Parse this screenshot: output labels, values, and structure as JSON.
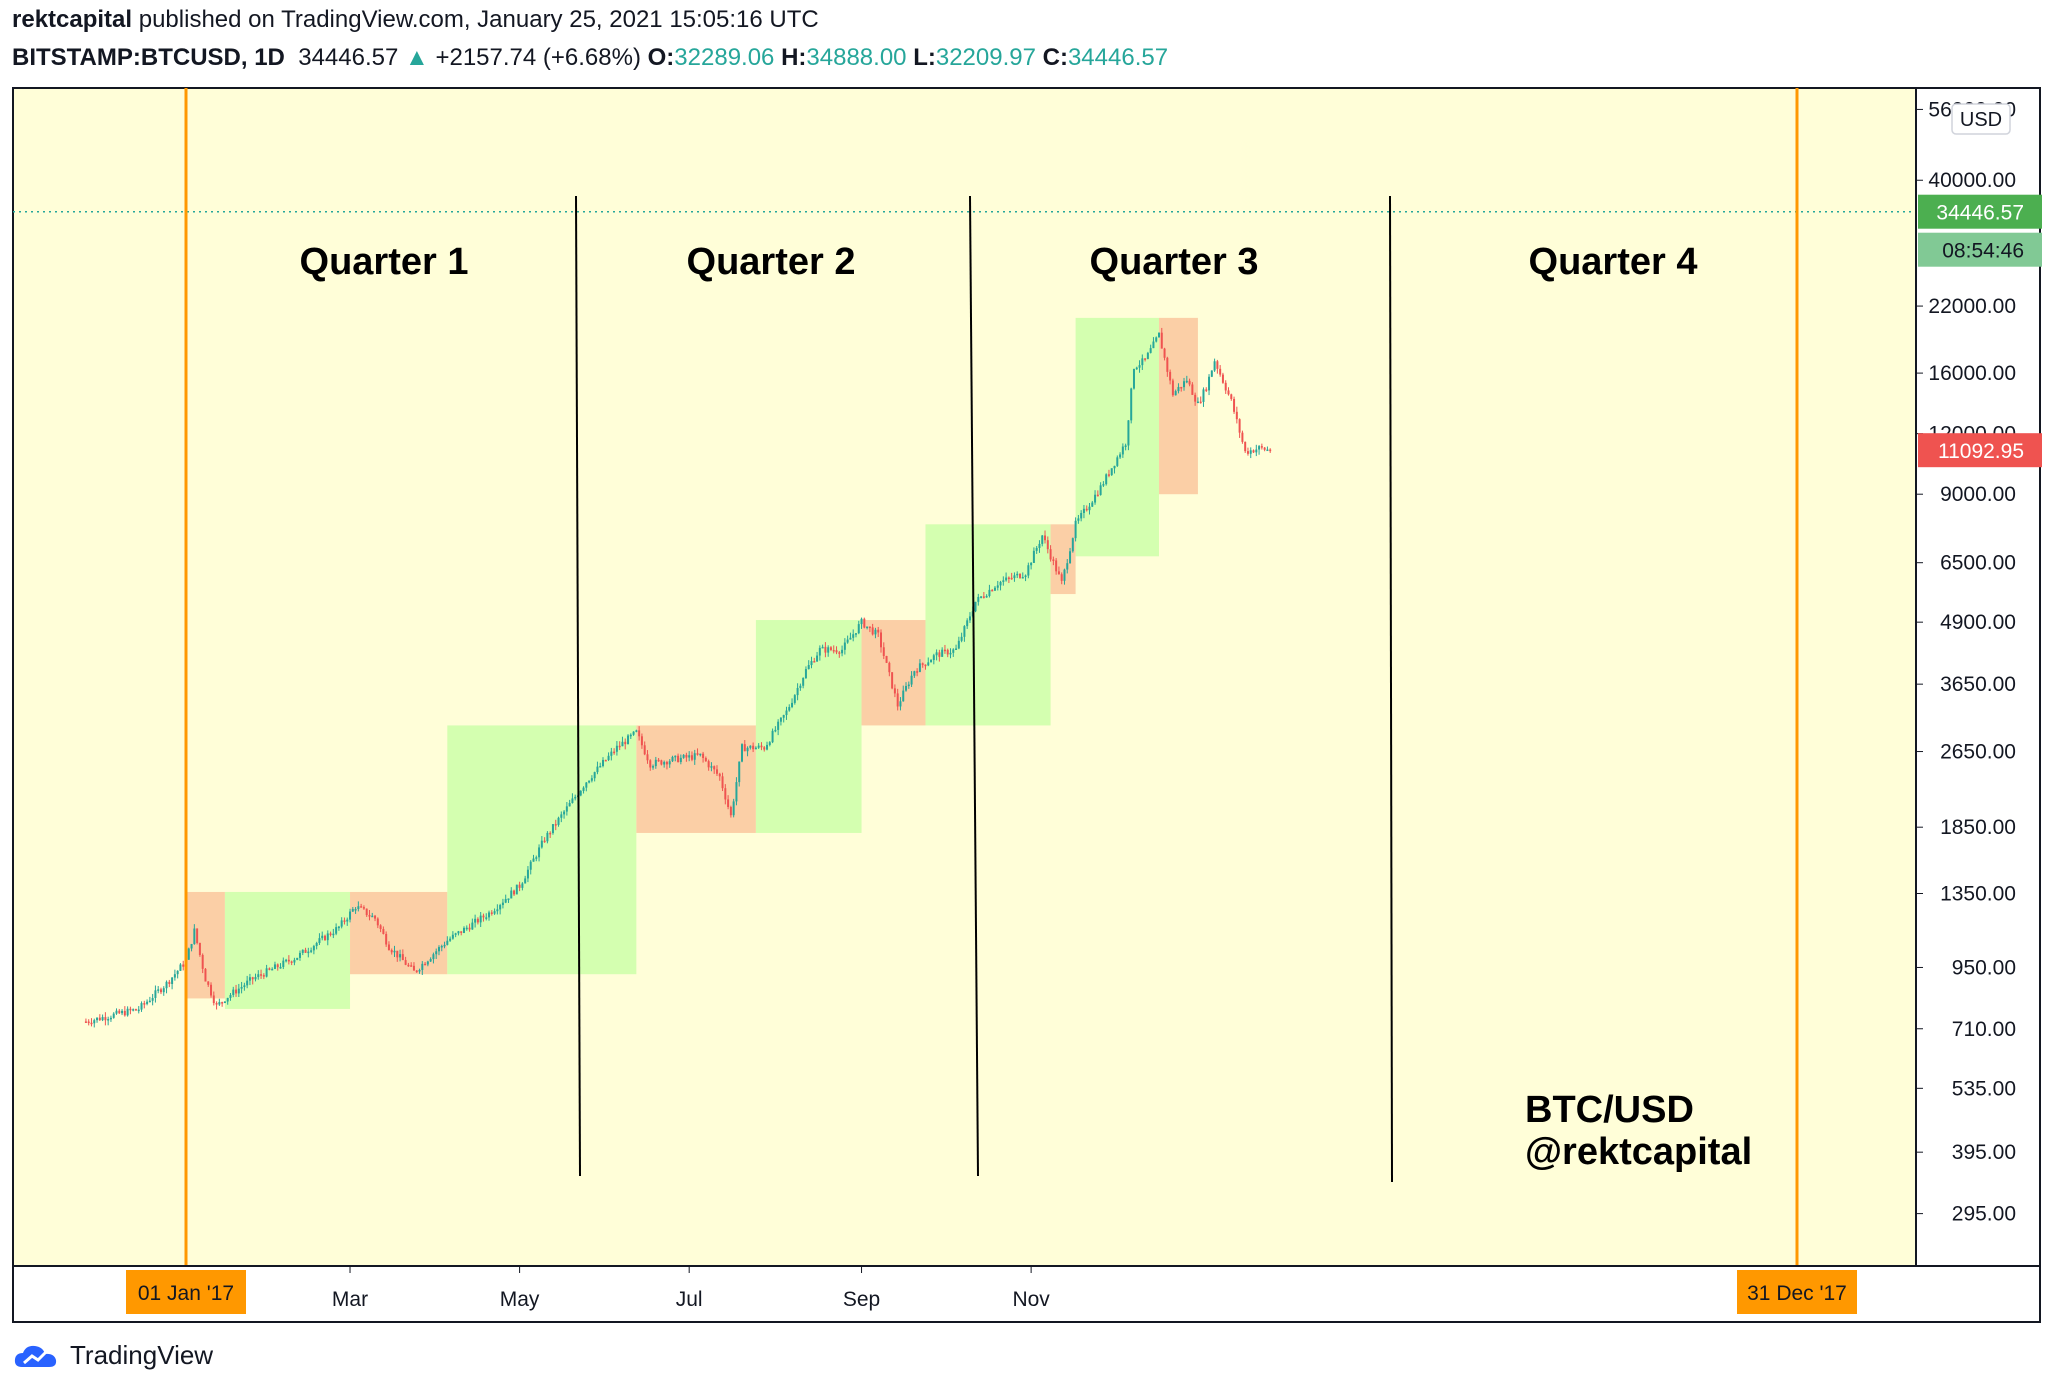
{
  "header": {
    "author": "rektcapital",
    "published_text": "published on TradingView.com, January 25, 2021 15:05:16 UTC",
    "symbol": "BITSTAMP:BTCUSD, 1D",
    "last": "34446.57",
    "change": "+2157.74 (+6.68%)",
    "open_label": "O:",
    "open": "32289.06",
    "high_label": "H:",
    "high": "34888.00",
    "low_label": "L:",
    "low": "32209.97",
    "close_label": "C:",
    "close": "34446.57"
  },
  "footer": {
    "brand": "TradingView"
  },
  "colors": {
    "background": "#fffed8",
    "green_zone": "#d4ffb0",
    "red_zone": "#fbcfa6",
    "up_candle": "#26a69a",
    "down_candle": "#ef5350",
    "orange_line": "#ff9800",
    "price_tag_green": "#4caf50",
    "price_tag_red": "#ef5350"
  },
  "chart_data": {
    "type": "candlestick",
    "scale": "log",
    "ylim": [
      230,
      62000
    ],
    "yticks": [
      "56000.00",
      "40000.00",
      "22000.00",
      "16000.00",
      "12000.00",
      "9000.00",
      "6500.00",
      "4900.00",
      "3650.00",
      "2650.00",
      "1850.00",
      "1350.00",
      "950.00",
      "710.00",
      "535.00",
      "395.00",
      "295.00"
    ],
    "currency_label": "USD",
    "xticks": [
      "Mar",
      "May",
      "Jul",
      "Sep",
      "Nov"
    ],
    "date_tags": [
      "01 Jan '17",
      "31 Dec '17"
    ],
    "price_tags": [
      {
        "text": "34446.57",
        "color": "green"
      },
      {
        "text": "08:54:46",
        "color": "green-light"
      },
      {
        "text": "11092.95",
        "color": "red"
      }
    ],
    "current_price_line": 34446.57,
    "quarters": [
      "Quarter 1",
      "Quarter 2",
      "Quarter 3",
      "Quarter 4"
    ],
    "annotations": [
      "BTC/USD",
      "@rektcapital"
    ],
    "zones": [
      {
        "color": "red",
        "from": "2017-01-01",
        "to": "2017-01-15",
        "low": 820,
        "high": 1360
      },
      {
        "color": "green",
        "from": "2017-01-15",
        "to": "2017-03-01",
        "low": 780,
        "high": 1360
      },
      {
        "color": "red",
        "from": "2017-03-01",
        "to": "2017-04-05",
        "low": 920,
        "high": 1360
      },
      {
        "color": "green",
        "from": "2017-04-05",
        "to": "2017-06-12",
        "low": 920,
        "high": 3000
      },
      {
        "color": "red",
        "from": "2017-06-12",
        "to": "2017-07-25",
        "low": 1800,
        "high": 3000
      },
      {
        "color": "green",
        "from": "2017-07-25",
        "to": "2017-09-01",
        "low": 1800,
        "high": 4950
      },
      {
        "color": "red",
        "from": "2017-09-01",
        "to": "2017-09-24",
        "low": 3000,
        "high": 4950
      },
      {
        "color": "green",
        "from": "2017-09-24",
        "to": "2017-11-08",
        "low": 3000,
        "high": 7800
      },
      {
        "color": "red",
        "from": "2017-11-08",
        "to": "2017-11-17",
        "low": 5600,
        "high": 7800
      },
      {
        "color": "green",
        "from": "2017-11-17",
        "to": "2017-12-17",
        "low": 6700,
        "high": 20800
      },
      {
        "color": "red",
        "from": "2017-12-17",
        "to": "2017-12-31",
        "low": 9000,
        "high": 20800
      }
    ],
    "price_path": [
      [
        "2016-11-26",
        735
      ],
      [
        "2016-12-15",
        780
      ],
      [
        "2016-12-25",
        880
      ],
      [
        "2017-01-01",
        980
      ],
      [
        "2017-01-04",
        1130
      ],
      [
        "2017-01-08",
        900
      ],
      [
        "2017-01-12",
        790
      ],
      [
        "2017-01-15",
        820
      ],
      [
        "2017-01-25",
        900
      ],
      [
        "2017-02-10",
        1000
      ],
      [
        "2017-02-25",
        1150
      ],
      [
        "2017-03-03",
        1270
      ],
      [
        "2017-03-10",
        1200
      ],
      [
        "2017-03-15",
        1050
      ],
      [
        "2017-03-24",
        930
      ],
      [
        "2017-04-05",
        1080
      ],
      [
        "2017-04-20",
        1230
      ],
      [
        "2017-05-01",
        1400
      ],
      [
        "2017-05-10",
        1750
      ],
      [
        "2017-05-25",
        2300
      ],
      [
        "2017-06-05",
        2700
      ],
      [
        "2017-06-12",
        2900
      ],
      [
        "2017-06-17",
        2500
      ],
      [
        "2017-06-25",
        2550
      ],
      [
        "2017-07-05",
        2600
      ],
      [
        "2017-07-12",
        2350
      ],
      [
        "2017-07-16",
        1950
      ],
      [
        "2017-07-20",
        2700
      ],
      [
        "2017-07-28",
        2700
      ],
      [
        "2017-08-05",
        3200
      ],
      [
        "2017-08-12",
        3900
      ],
      [
        "2017-08-17",
        4300
      ],
      [
        "2017-08-25",
        4300
      ],
      [
        "2017-09-01",
        4900
      ],
      [
        "2017-09-07",
        4600
      ],
      [
        "2017-09-14",
        3300
      ],
      [
        "2017-09-20",
        3900
      ],
      [
        "2017-09-28",
        4200
      ],
      [
        "2017-10-05",
        4300
      ],
      [
        "2017-10-12",
        5400
      ],
      [
        "2017-10-20",
        5900
      ],
      [
        "2017-10-30",
        6200
      ],
      [
        "2017-11-05",
        7400
      ],
      [
        "2017-11-12",
        5900
      ],
      [
        "2017-11-17",
        7800
      ],
      [
        "2017-11-26",
        9300
      ],
      [
        "2017-12-05",
        11500
      ],
      [
        "2017-12-08",
        16500
      ],
      [
        "2017-12-12",
        17000
      ],
      [
        "2017-12-17",
        19200
      ],
      [
        "2017-12-22",
        14500
      ],
      [
        "2017-12-27",
        15500
      ],
      [
        "2017-12-31",
        13800
      ],
      [
        "2018-01-03",
        15000
      ],
      [
        "2018-01-06",
        17000
      ],
      [
        "2018-01-12",
        14000
      ],
      [
        "2018-01-17",
        11000
      ],
      [
        "2018-01-22",
        11200
      ],
      [
        "2018-01-26",
        11092
      ]
    ]
  }
}
